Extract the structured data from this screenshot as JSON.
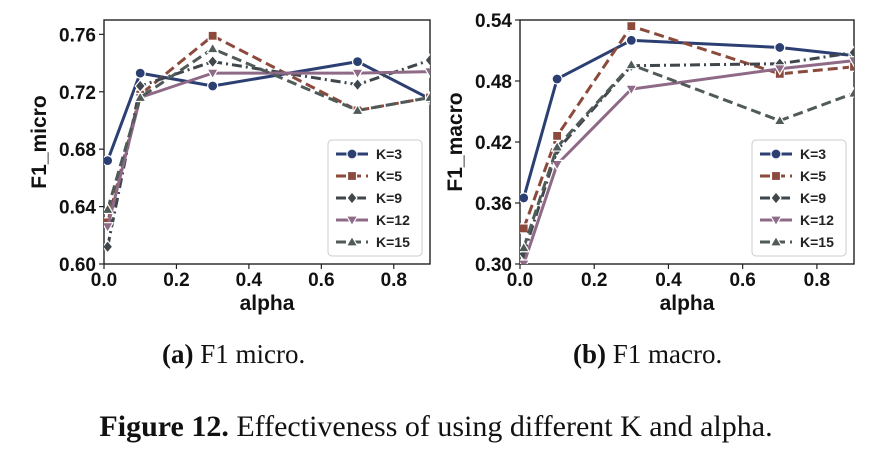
{
  "figure": {
    "caption_label": "Figure 12.",
    "caption_text": "Effectiveness of using different K and alpha."
  },
  "subcaptions": [
    {
      "label": "(a)",
      "text": "F1 micro."
    },
    {
      "label": "(b)",
      "text": "F1 macro."
    }
  ],
  "series_styles": [
    {
      "name": "K=3",
      "color": "#2b3f72",
      "marker": "circle",
      "dash": "solid"
    },
    {
      "name": "K=5",
      "color": "#8b4a3c",
      "marker": "square",
      "dash": "dashed"
    },
    {
      "name": "K=9",
      "color": "#3f474c",
      "marker": "diamond",
      "dash": "dashdot"
    },
    {
      "name": "K=12",
      "color": "#8e6a87",
      "marker": "triangle-down",
      "dash": "solid"
    },
    {
      "name": "K=15",
      "color": "#4f5a59",
      "marker": "triangle-up",
      "dash": "dashed"
    }
  ],
  "chart_data": [
    {
      "type": "line",
      "xlabel": "alpha",
      "ylabel": "F1_micro",
      "xlim": [
        0.0,
        0.9
      ],
      "ylim": [
        0.6,
        0.77
      ],
      "xticks": [
        "0.0",
        "0.2",
        "0.4",
        "0.6",
        "0.8"
      ],
      "xtick_values": [
        0.0,
        0.2,
        0.4,
        0.6,
        0.8
      ],
      "yticks": [
        "0.60",
        "0.64",
        "0.68",
        "0.72",
        "0.76"
      ],
      "ytick_values": [
        0.6,
        0.64,
        0.68,
        0.72,
        0.76
      ],
      "legend_position": "lower-right",
      "x": [
        0.01,
        0.1,
        0.3,
        0.7,
        0.9
      ],
      "series": [
        {
          "name": "K=3",
          "values": [
            0.672,
            0.733,
            0.724,
            0.741,
            0.715
          ]
        },
        {
          "name": "K=5",
          "values": [
            0.629,
            0.718,
            0.759,
            0.707,
            0.716
          ]
        },
        {
          "name": "K=9",
          "values": [
            0.612,
            0.724,
            0.741,
            0.725,
            0.742
          ]
        },
        {
          "name": "K=12",
          "values": [
            0.626,
            0.716,
            0.733,
            0.733,
            0.734
          ]
        },
        {
          "name": "K=15",
          "values": [
            0.638,
            0.716,
            0.75,
            0.707,
            0.716
          ]
        }
      ]
    },
    {
      "type": "line",
      "xlabel": "alpha",
      "ylabel": "F1_macro",
      "xlim": [
        0.0,
        0.9
      ],
      "ylim": [
        0.3,
        0.54
      ],
      "xticks": [
        "0.0",
        "0.2",
        "0.4",
        "0.6",
        "0.8"
      ],
      "xtick_values": [
        0.0,
        0.2,
        0.4,
        0.6,
        0.8
      ],
      "yticks": [
        "0.30",
        "0.36",
        "0.42",
        "0.48",
        "0.54"
      ],
      "ytick_values": [
        0.3,
        0.36,
        0.42,
        0.48,
        0.54
      ],
      "legend_position": "lower-right",
      "x": [
        0.01,
        0.1,
        0.3,
        0.7,
        0.9
      ],
      "series": [
        {
          "name": "K=3",
          "values": [
            0.365,
            0.482,
            0.52,
            0.513,
            0.505
          ]
        },
        {
          "name": "K=5",
          "values": [
            0.335,
            0.426,
            0.534,
            0.487,
            0.494
          ]
        },
        {
          "name": "K=9",
          "values": [
            0.31,
            0.412,
            0.495,
            0.497,
            0.508
          ]
        },
        {
          "name": "K=12",
          "values": [
            0.3,
            0.398,
            0.472,
            0.492,
            0.5
          ]
        },
        {
          "name": "K=15",
          "values": [
            0.316,
            0.415,
            0.496,
            0.441,
            0.468
          ]
        }
      ]
    }
  ]
}
